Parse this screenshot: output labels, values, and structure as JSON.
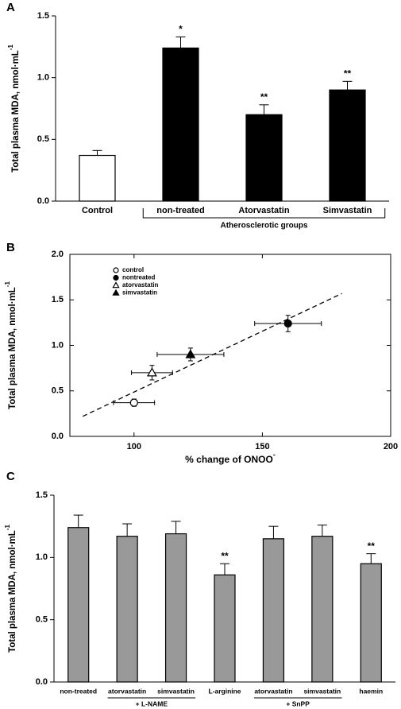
{
  "chart_data": [
    {
      "type": "bar",
      "panel": "A",
      "y_label": "Total plasma MDA, nmol·mL",
      "y_label_sup": "-1",
      "categories": [
        "Control",
        "non-treated",
        "Atorvastatin",
        "Simvastatin"
      ],
      "values": [
        0.37,
        1.24,
        0.7,
        0.9
      ],
      "errors": [
        0.04,
        0.09,
        0.08,
        0.07
      ],
      "annotations": [
        null,
        "*",
        "**",
        "**"
      ],
      "colors": [
        "#ffffff",
        "#000000",
        "#000000",
        "#000000"
      ],
      "group_labels": [
        "Atherosclerotic groups"
      ],
      "ylim": [
        0,
        1.5
      ],
      "yticks": [
        {
          "value": 0,
          "label": "0.0"
        },
        0.5,
        {
          "value": 1,
          "label": "1.0"
        },
        1.5
      ]
    },
    {
      "type": "scatter",
      "panel": "B",
      "y_label": "Total plasma MDA, nmol·mL",
      "y_label_sup": "-1",
      "x_label": "% change of ONOO",
      "x_label_sup": "-",
      "series": [
        {
          "name": "control",
          "marker": "circle",
          "filled": false,
          "x": [
            100
          ],
          "values": [
            0.37
          ],
          "x_errors": [
            8
          ],
          "errors": [
            0.04
          ]
        },
        {
          "name": "nontreated",
          "marker": "circle",
          "filled": true,
          "x": [
            160
          ],
          "values": [
            1.24
          ],
          "x_errors": [
            13
          ],
          "errors": [
            0.09
          ]
        },
        {
          "name": "atorvastatin",
          "marker": "triangle",
          "filled": false,
          "x": [
            107
          ],
          "values": [
            0.7
          ],
          "x_errors": [
            8
          ],
          "errors": [
            0.08
          ]
        },
        {
          "name": "simvastatin",
          "marker": "triangle",
          "filled": true,
          "x": [
            122
          ],
          "values": [
            0.9
          ],
          "x_errors": [
            13
          ],
          "errors": [
            0.07
          ]
        }
      ],
      "fit_line": {
        "x": [
          80,
          181
        ],
        "values": [
          0.22,
          1.57
        ]
      },
      "legend": "upper left",
      "xlim": [
        75,
        200
      ],
      "xticks": [
        100,
        150,
        200
      ],
      "ylim": [
        0,
        2
      ],
      "yticks": [
        {
          "value": 0,
          "label": "0.0"
        },
        0.5,
        {
          "value": 1,
          "label": "1.0"
        },
        1.5,
        {
          "value": 2,
          "label": "2.0"
        }
      ]
    },
    {
      "type": "bar",
      "panel": "C",
      "y_label": "Total plasma MDA, nmol·mL",
      "y_label_sup": "-1",
      "categories": [
        "non-treated",
        "atorvastatin",
        "simvastatin",
        "L-arginine",
        "atorvastatin",
        "simvastatin",
        "haemin"
      ],
      "values": [
        1.24,
        1.17,
        1.19,
        0.86,
        1.15,
        1.17,
        0.95
      ],
      "errors": [
        0.1,
        0.1,
        0.1,
        0.09,
        0.1,
        0.09,
        0.08
      ],
      "annotations": [
        null,
        null,
        null,
        "**",
        null,
        null,
        "**"
      ],
      "colors": [
        "#999999",
        "#999999",
        "#999999",
        "#999999",
        "#999999",
        "#999999",
        "#999999"
      ],
      "group_labels": [
        "+ L-NAME",
        "+ SnPP"
      ],
      "ylim": [
        0,
        1.5
      ],
      "yticks": [
        {
          "value": 0,
          "label": "0.0"
        },
        0.5,
        {
          "value": 1,
          "label": "1.0"
        },
        1.5
      ]
    }
  ]
}
